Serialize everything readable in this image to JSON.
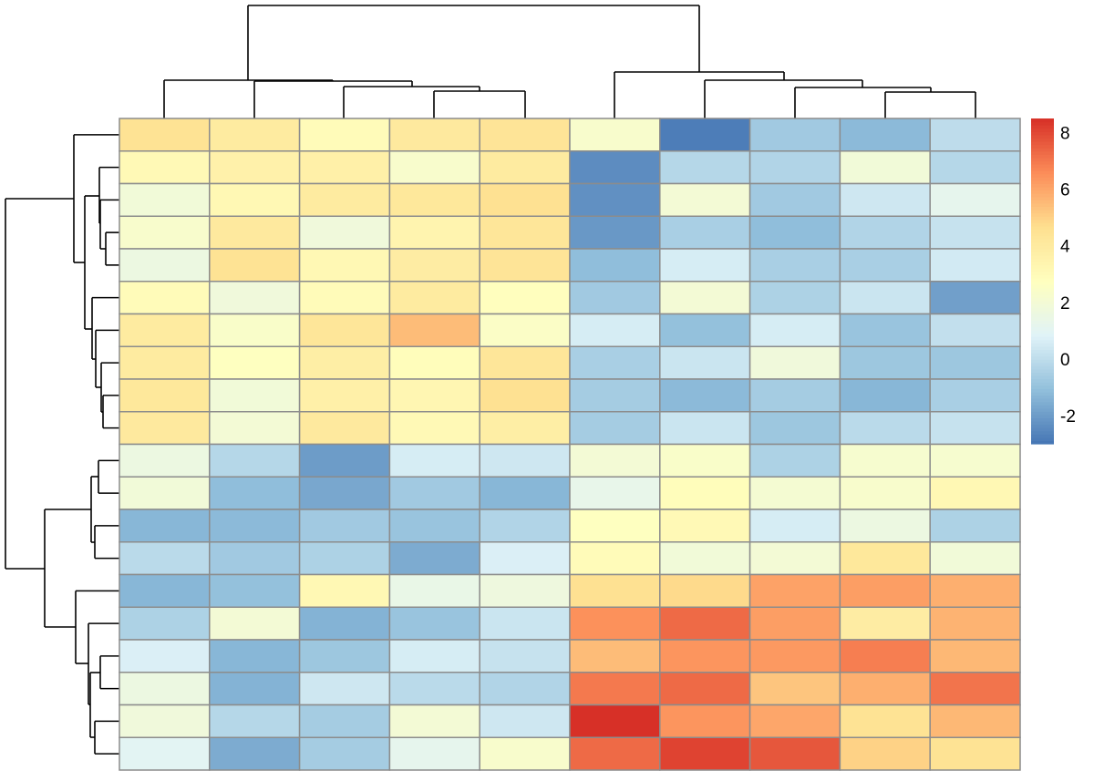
{
  "chart_data": {
    "type": "heatmap",
    "title": "",
    "row_dendrogram": true,
    "column_dendrogram": true,
    "n_rows": 20,
    "n_cols": 10,
    "values": [
      [
        4.5,
        4.0,
        3.0,
        4.1,
        4.4,
        2.3,
        -2.8,
        -0.7,
        -1.2,
        0.0
      ],
      [
        3.1,
        3.6,
        3.7,
        2.3,
        4.0,
        -2.4,
        -0.2,
        -0.3,
        1.9,
        -0.2
      ],
      [
        1.9,
        3.2,
        4.0,
        4.2,
        4.6,
        -2.3,
        2.0,
        -0.7,
        0.4,
        1.2
      ],
      [
        2.3,
        4.1,
        1.8,
        3.4,
        4.3,
        -2.1,
        -0.5,
        -1.1,
        -0.3,
        0.2
      ],
      [
        1.6,
        4.5,
        3.2,
        3.9,
        4.4,
        -1.1,
        0.6,
        -0.5,
        -0.5,
        0.5
      ],
      [
        3.0,
        1.8,
        3.0,
        4.0,
        2.8,
        -0.7,
        2.0,
        -0.4,
        0.3,
        -1.9
      ],
      [
        4.0,
        2.4,
        4.3,
        5.5,
        2.5,
        0.6,
        -1.0,
        0.6,
        -0.9,
        0.1
      ],
      [
        4.0,
        2.7,
        3.8,
        2.9,
        4.3,
        -0.5,
        0.3,
        1.8,
        -0.8,
        -0.8
      ],
      [
        4.2,
        1.9,
        3.7,
        3.3,
        4.6,
        -0.6,
        -1.2,
        -0.6,
        -1.3,
        -0.5
      ],
      [
        4.1,
        2.0,
        4.1,
        3.1,
        3.8,
        -0.6,
        0.3,
        -0.8,
        -0.1,
        0.2
      ],
      [
        1.6,
        -0.2,
        -2.0,
        0.6,
        0.4,
        2.0,
        2.4,
        -0.4,
        2.2,
        2.2
      ],
      [
        1.9,
        -1.1,
        -1.7,
        -0.7,
        -1.3,
        1.3,
        2.9,
        2.1,
        2.3,
        3.2
      ],
      [
        -1.3,
        -1.2,
        -0.7,
        -0.9,
        -0.3,
        2.7,
        3.1,
        0.6,
        1.6,
        -0.4
      ],
      [
        -0.1,
        -0.7,
        -0.4,
        -1.6,
        0.7,
        3.0,
        1.9,
        2.0,
        4.2,
        1.9
      ],
      [
        -1.3,
        -1.0,
        3.2,
        1.4,
        1.7,
        4.6,
        4.8,
        6.1,
        6.2,
        5.8
      ],
      [
        -0.4,
        2.0,
        -1.4,
        -0.9,
        0.3,
        6.5,
        7.3,
        6.2,
        3.9,
        5.7
      ],
      [
        0.7,
        -1.3,
        -0.8,
        0.6,
        0.2,
        5.5,
        6.4,
        6.3,
        6.9,
        5.6
      ],
      [
        1.6,
        -1.4,
        0.4,
        -0.1,
        -0.3,
        7.0,
        7.3,
        5.3,
        5.8,
        7.1
      ],
      [
        1.8,
        -0.2,
        -0.6,
        2.0,
        0.4,
        8.5,
        6.4,
        6.0,
        4.5,
        5.6
      ],
      [
        1.0,
        -1.6,
        -0.6,
        1.2,
        2.3,
        7.3,
        8.1,
        7.7,
        5.0,
        4.5
      ]
    ],
    "colorbar": {
      "range": [
        -3,
        8.5
      ],
      "ticks": [
        -2,
        0,
        2,
        4,
        6,
        8
      ],
      "tick_labels": [
        "-2",
        "0",
        "2",
        "4",
        "6",
        "8"
      ],
      "palette": [
        "#4575B4",
        "#91BFDB",
        "#E0F3F8",
        "#FFFFBF",
        "#FEE090",
        "#FC8D59",
        "#D73027"
      ]
    },
    "cell_border_color": "#8C8C8C"
  }
}
